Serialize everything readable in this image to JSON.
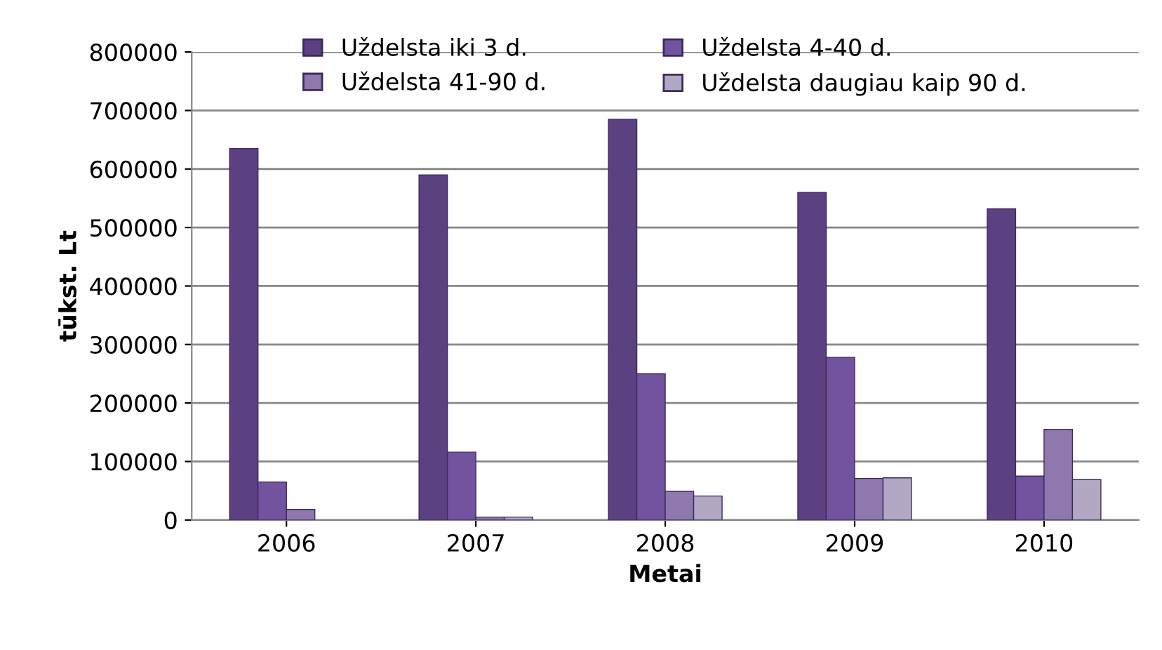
{
  "chart_data": {
    "type": "bar",
    "xlabel": "Metai",
    "ylabel": "tūkst. Lt",
    "categories": [
      "2006",
      "2007",
      "2008",
      "2009",
      "2010"
    ],
    "series": [
      {
        "name": "Uždelsta iki 3 d.",
        "color": "#5b4082",
        "values": [
          635000,
          590000,
          685000,
          560000,
          532000
        ]
      },
      {
        "name": "Uždelsta 4-40 d.",
        "color": "#7253a0",
        "values": [
          65000,
          116000,
          250000,
          278000,
          75000
        ]
      },
      {
        "name": "Uždelsta 41-90 d.",
        "color": "#8e78ad",
        "values": [
          18000,
          5000,
          49000,
          71000,
          155000
        ]
      },
      {
        "name": "Uždelsta daugiau kaip 90 d.",
        "color": "#b2a8c4",
        "values": [
          null,
          5000,
          41000,
          72000,
          69000
        ]
      }
    ],
    "ylim": [
      0,
      800000
    ],
    "yticks": [
      0,
      100000,
      200000,
      300000,
      400000,
      500000,
      600000,
      700000,
      800000
    ],
    "grid": "y",
    "legend": "top"
  }
}
